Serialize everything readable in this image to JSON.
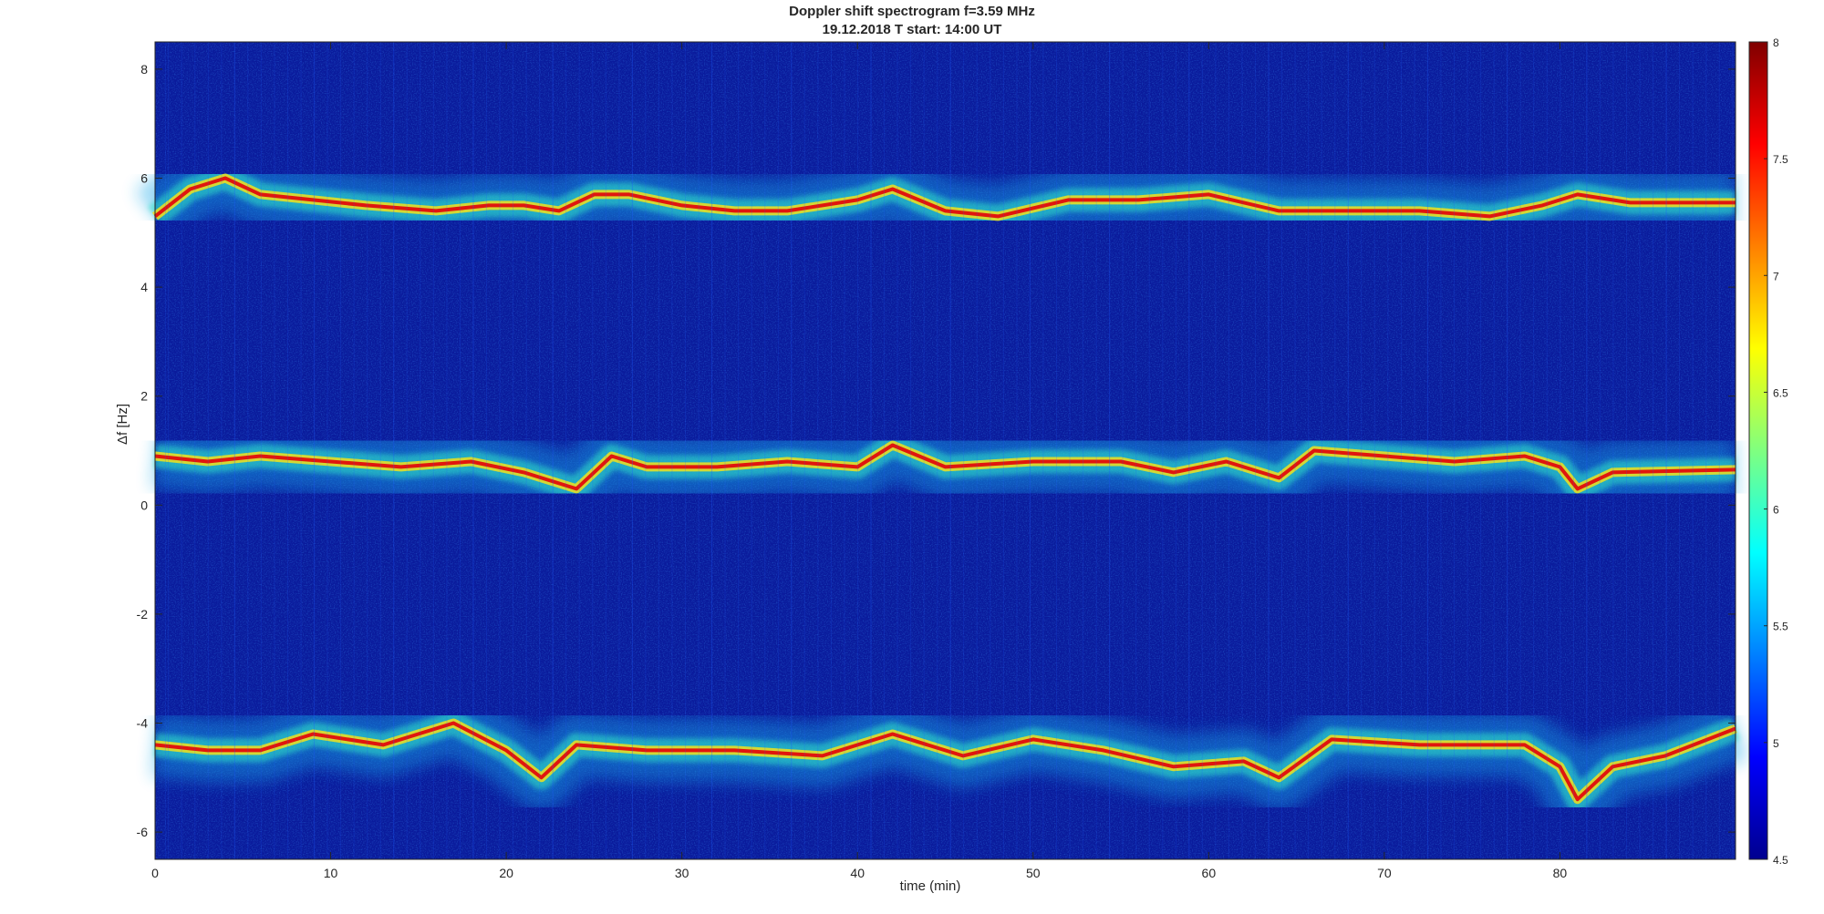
{
  "chart_data": {
    "type": "heatmap",
    "title": "Doppler shift spectrogram f=3.59 MHz",
    "subtitle": "19.12.2018   T start: 14:00 UT",
    "xlabel": "time (min)",
    "ylabel": "Δf [Hz]",
    "xlim": [
      0,
      90
    ],
    "ylim": [
      -6.5,
      8.5
    ],
    "x_ticks": [
      0,
      10,
      20,
      30,
      40,
      50,
      60,
      70,
      80
    ],
    "y_ticks": [
      8,
      6,
      4,
      2,
      0,
      -2,
      -4,
      -6
    ],
    "colorbar": {
      "range": [
        4.5,
        8
      ],
      "ticks": [
        "8",
        "7.5",
        "7",
        "6.5",
        "6",
        "5.5",
        "5",
        "4.5"
      ],
      "colormap": "jet"
    },
    "series": [
      {
        "x": [
          0,
          2,
          4,
          6,
          9,
          12,
          16,
          19,
          21,
          23,
          25,
          27,
          30,
          33,
          36,
          40,
          42,
          45,
          48,
          52,
          56,
          60,
          64,
          68,
          72,
          76,
          79,
          81,
          84,
          90
        ],
        "y": [
          5.3,
          5.8,
          6.0,
          5.7,
          5.6,
          5.5,
          5.4,
          5.5,
          5.5,
          5.4,
          5.7,
          5.7,
          5.5,
          5.4,
          5.4,
          5.6,
          5.8,
          5.4,
          5.3,
          5.6,
          5.6,
          5.7,
          5.4,
          5.4,
          5.4,
          5.3,
          5.5,
          5.7,
          5.55,
          5.55
        ]
      },
      {
        "x": [
          0,
          3,
          6,
          10,
          14,
          18,
          21,
          24,
          26,
          28,
          32,
          36,
          40,
          42,
          45,
          50,
          55,
          58,
          61,
          64,
          66,
          70,
          74,
          78,
          80,
          81,
          83,
          90
        ],
        "y": [
          0.9,
          0.8,
          0.9,
          0.8,
          0.7,
          0.8,
          0.6,
          0.3,
          0.9,
          0.7,
          0.7,
          0.8,
          0.7,
          1.1,
          0.7,
          0.8,
          0.8,
          0.6,
          0.8,
          0.5,
          1.0,
          0.9,
          0.8,
          0.9,
          0.7,
          0.3,
          0.6,
          0.65
        ]
      },
      {
        "x": [
          0,
          3,
          6,
          9,
          13,
          17,
          20,
          22,
          24,
          28,
          33,
          38,
          42,
          46,
          50,
          54,
          58,
          62,
          64,
          67,
          72,
          78,
          80,
          81,
          83,
          86,
          90
        ],
        "y": [
          -4.4,
          -4.5,
          -4.5,
          -4.2,
          -4.4,
          -4.0,
          -4.5,
          -5.0,
          -4.4,
          -4.5,
          -4.5,
          -4.6,
          -4.2,
          -4.6,
          -4.3,
          -4.5,
          -4.8,
          -4.7,
          -5.0,
          -4.3,
          -4.4,
          -4.4,
          -4.8,
          -5.4,
          -4.8,
          -4.6,
          -4.1
        ]
      }
    ],
    "grid": false,
    "legend": "none"
  }
}
